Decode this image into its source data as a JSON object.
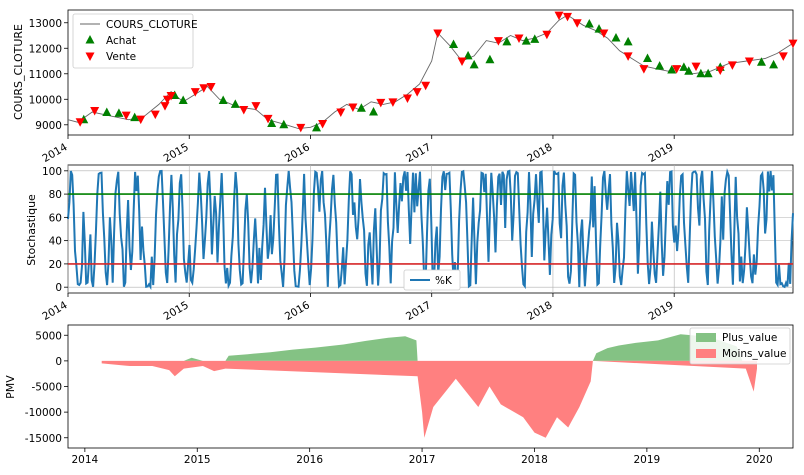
{
  "chart_data": [
    {
      "type": "line",
      "ylabel": "COURS_CLOTURE",
      "ylim": [
        8600,
        13500
      ],
      "xlim": [
        2014.0,
        2019.98
      ],
      "y_ticks": [
        9000,
        10000,
        11000,
        12000,
        13000
      ],
      "x_ticks": [
        "2014",
        "2015",
        "2016",
        "2017",
        "2018",
        "2019"
      ],
      "legend": {
        "position": "top-left",
        "entries": [
          "COURS_CLOTURE",
          "Achat",
          "Vente"
        ]
      },
      "colors": {
        "line": "#666666",
        "achat": "#008000",
        "vente": "#ff0000"
      },
      "series": [
        {
          "name": "COURS_CLOTURE",
          "x": [
            2014.0,
            2014.08,
            2014.2,
            2014.35,
            2014.5,
            2014.62,
            2014.75,
            2014.85,
            2014.95,
            2015.05,
            2015.15,
            2015.25,
            2015.4,
            2015.55,
            2015.65,
            2015.8,
            2015.9,
            2016.0,
            2016.1,
            2016.2,
            2016.3,
            2016.4,
            2016.5,
            2016.6,
            2016.7,
            2016.8,
            2016.9,
            2017.0,
            2017.05,
            2017.15,
            2017.25,
            2017.35,
            2017.45,
            2017.55,
            2017.65,
            2017.75,
            2017.85,
            2017.95,
            2018.05,
            2018.12,
            2018.25,
            2018.35,
            2018.45,
            2018.55,
            2018.65,
            2018.75,
            2018.85,
            2018.95,
            2019.05,
            2019.15,
            2019.3,
            2019.45,
            2019.6,
            2019.75,
            2019.85,
            2019.98
          ],
          "y": [
            9200,
            9100,
            9500,
            9350,
            9200,
            9300,
            9800,
            10300,
            9900,
            10200,
            10500,
            10000,
            9700,
            9600,
            9200,
            9000,
            8850,
            8900,
            9100,
            9500,
            9800,
            9600,
            9900,
            9800,
            9900,
            10200,
            10600,
            11500,
            12600,
            12100,
            11500,
            11700,
            12300,
            12200,
            12500,
            12300,
            12400,
            12600,
            13100,
            13300,
            12900,
            12700,
            12400,
            11900,
            11600,
            11300,
            11200,
            11100,
            11300,
            11000,
            11100,
            11400,
            11500,
            11600,
            11800,
            12200
          ]
        },
        {
          "name": "Achat",
          "x": [
            2014.13,
            2014.32,
            2014.42,
            2014.55,
            2014.88,
            2014.95,
            2015.28,
            2015.38,
            2015.68,
            2015.78,
            2016.05,
            2016.42,
            2016.52,
            2017.18,
            2017.3,
            2017.35,
            2017.48,
            2017.62,
            2017.78,
            2017.85,
            2018.3,
            2018.38,
            2018.52,
            2018.62,
            2018.78,
            2018.88,
            2018.98,
            2019.08,
            2019.12,
            2019.22,
            2019.28,
            2019.38,
            2019.72,
            2019.82
          ],
          "y": [
            9200,
            9480,
            9450,
            9280,
            10150,
            9950,
            9950,
            9800,
            9050,
            9000,
            8880,
            9650,
            9500,
            12150,
            11700,
            11350,
            11550,
            12250,
            12280,
            12350,
            12950,
            12750,
            12400,
            12250,
            11600,
            11300,
            11150,
            11250,
            11100,
            11000,
            11000,
            11250,
            11450,
            11350
          ]
        },
        {
          "name": "Vente",
          "x": [
            2014.1,
            2014.22,
            2014.48,
            2014.6,
            2014.72,
            2014.8,
            2014.82,
            2014.85,
            2015.05,
            2015.12,
            2015.18,
            2015.45,
            2015.55,
            2015.65,
            2015.92,
            2016.1,
            2016.25,
            2016.35,
            2016.58,
            2016.68,
            2016.8,
            2016.88,
            2016.95,
            2017.05,
            2017.25,
            2017.55,
            2017.72,
            2017.95,
            2018.05,
            2018.12,
            2018.2,
            2018.42,
            2018.62,
            2018.75,
            2019.02,
            2019.18,
            2019.38,
            2019.48,
            2019.62,
            2019.9,
            2019.98
          ],
          "y": [
            9120,
            9560,
            9380,
            9220,
            9420,
            9750,
            10000,
            10150,
            10300,
            10450,
            10500,
            9600,
            9750,
            9250,
            8900,
            9050,
            9500,
            9700,
            9880,
            9900,
            10050,
            10300,
            10550,
            12600,
            11500,
            12300,
            12400,
            12550,
            13300,
            13250,
            13000,
            12600,
            11700,
            11200,
            11200,
            11300,
            11150,
            11350,
            11500,
            11700,
            12200
          ]
        }
      ]
    },
    {
      "type": "line",
      "ylabel": "Stochastique",
      "ylim": [
        -5,
        105
      ],
      "xlim": [
        2014.0,
        2019.98
      ],
      "y_ticks": [
        0,
        20,
        40,
        60,
        80,
        100
      ],
      "x_ticks": [
        "2014",
        "2015",
        "2016",
        "2017",
        "2018",
        "2019"
      ],
      "hlines": [
        {
          "y": 80,
          "color": "#008000"
        },
        {
          "y": 20,
          "color": "#d62728"
        }
      ],
      "legend": {
        "position": "bottom-center",
        "entries": [
          "%K"
        ]
      },
      "colors": {
        "line": "#1f77b4"
      },
      "series": [
        {
          "name": "%K",
          "oscillation": "0-100"
        }
      ]
    },
    {
      "type": "area",
      "ylabel": "PMV",
      "ylim": [
        -17000,
        7000
      ],
      "xlim": [
        2013.85,
        2020.3
      ],
      "y_ticks": [
        5000,
        0,
        -5000,
        -10000,
        -15000
      ],
      "x_ticks": [
        "2014",
        "2015",
        "2016",
        "2017",
        "2018",
        "2019",
        "2020"
      ],
      "legend": {
        "position": "top-right",
        "entries": [
          "Plus_value",
          "Moins_value"
        ]
      },
      "colors": {
        "plus": "#84c284",
        "moins": "#ff8080"
      },
      "series": [
        {
          "name": "Plus_value",
          "x": [
            2014.88,
            2014.95,
            2015.05,
            2015.25,
            2015.28,
            2015.45,
            2015.65,
            2015.85,
            2016.05,
            2016.3,
            2016.5,
            2016.7,
            2016.85,
            2016.95,
            2016.96,
            2018.52,
            2018.55,
            2018.65,
            2018.75,
            2018.9,
            2019.1,
            2019.3,
            2019.5,
            2019.65,
            2019.8,
            2019.85
          ],
          "y": [
            0,
            600,
            0,
            0,
            1000,
            1300,
            1700,
            2200,
            2600,
            3200,
            3900,
            4500,
            4800,
            4000,
            0,
            0,
            1500,
            2500,
            3000,
            3500,
            4000,
            5200,
            4800,
            4000,
            2800,
            0
          ]
        },
        {
          "name": "Moins_value",
          "x": [
            2014.15,
            2014.4,
            2014.6,
            2014.75,
            2014.8,
            2014.88,
            2015.05,
            2015.15,
            2015.25,
            2016.96,
            2017.0,
            2017.02,
            2017.1,
            2017.3,
            2017.5,
            2017.6,
            2017.7,
            2017.9,
            2018.0,
            2018.1,
            2018.2,
            2018.3,
            2018.4,
            2018.5,
            2018.52,
            2019.88,
            2019.95,
            2019.98
          ],
          "y": [
            -500,
            -1000,
            -1000,
            -1800,
            -3000,
            -1500,
            -1000,
            -2000,
            -1500,
            -3000,
            -10000,
            -15000,
            -9000,
            -3500,
            -9000,
            -5000,
            -8500,
            -11000,
            -14000,
            -15000,
            -11000,
            -13000,
            -9000,
            -4000,
            0,
            -1500,
            -6000,
            -1500
          ]
        }
      ]
    }
  ]
}
